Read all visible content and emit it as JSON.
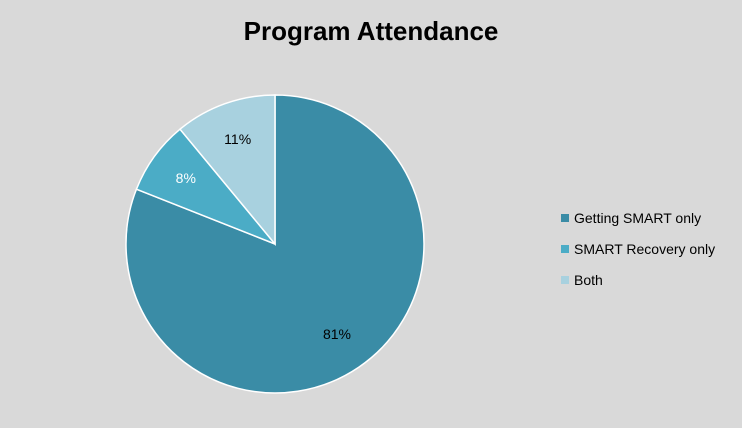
{
  "chart_data": {
    "type": "pie",
    "title": "Program Attendance",
    "slices": [
      {
        "label": "Getting SMART only",
        "value": 81,
        "display": "81%",
        "color": "#3a8ca6",
        "label_color": "#000000"
      },
      {
        "label": "SMART Recovery only",
        "value": 8,
        "display": "8%",
        "color": "#4bacc6",
        "label_color": "#ffffff"
      },
      {
        "label": "Both",
        "value": 11,
        "display": "11%",
        "color": "#a8d1df",
        "label_color": "#000000"
      }
    ],
    "start_angle_deg": 0,
    "direction": "clockwise",
    "legend_position": "right",
    "data_labels": "inside",
    "background": "#d9d9d9"
  }
}
